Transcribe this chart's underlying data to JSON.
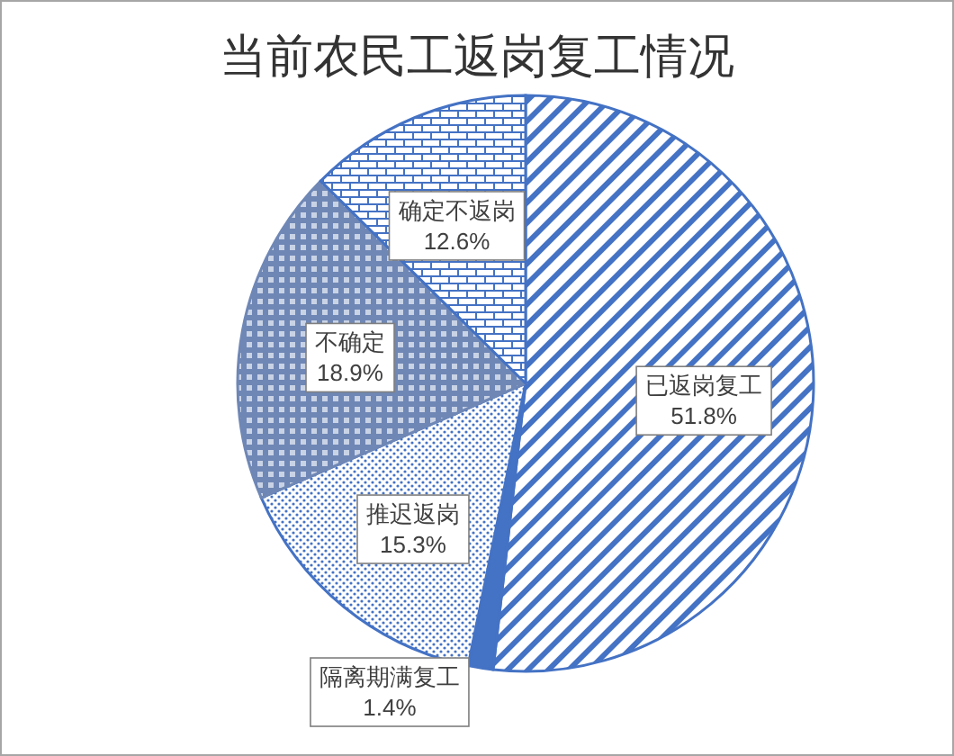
{
  "chart_data": {
    "type": "pie",
    "title": "当前农民工返岗复工情况",
    "categories": [
      "已返岗复工",
      "隔离期满复工",
      "推迟返岗",
      "不确定",
      "确定不返岗"
    ],
    "values": [
      51.8,
      1.4,
      15.3,
      18.9,
      12.6
    ],
    "colors": [
      "#4472c4",
      "#4472c4",
      "#4472c4",
      "#6f87b5",
      "#4472c4"
    ],
    "value_labels": [
      "51.8%",
      "1.4%",
      "15.3%",
      "18.9%",
      "12.6%"
    ]
  }
}
